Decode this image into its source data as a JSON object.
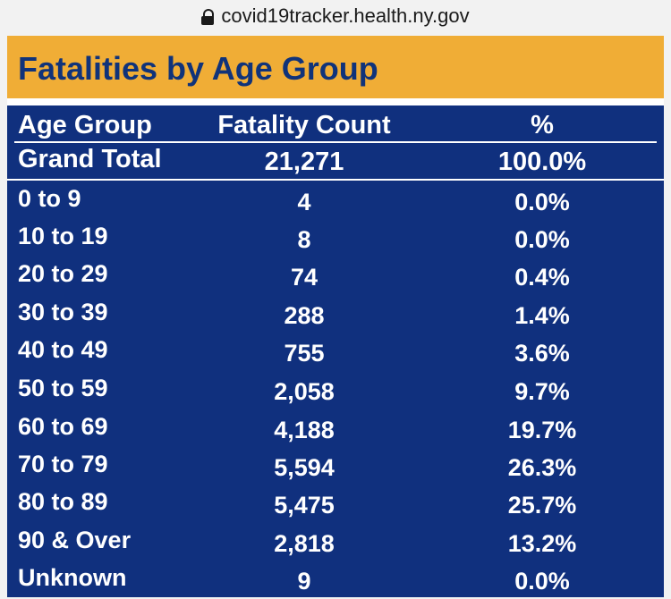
{
  "browser": {
    "url": "covid19tracker.health.ny.gov"
  },
  "panel": {
    "title": "Fatalities by Age Group"
  },
  "table": {
    "headers": {
      "age": "Age Group",
      "count": "Fatality Count",
      "pct": "%"
    },
    "total": {
      "age": "Grand Total",
      "count": "21,271",
      "pct": "100.0%"
    },
    "rows": [
      {
        "age": "0 to 9",
        "count": "4",
        "pct": "0.0%"
      },
      {
        "age": "10 to 19",
        "count": "8",
        "pct": "0.0%"
      },
      {
        "age": "20 to 29",
        "count": "74",
        "pct": "0.4%"
      },
      {
        "age": "30 to 39",
        "count": "288",
        "pct": "1.4%"
      },
      {
        "age": "40 to 49",
        "count": "755",
        "pct": "3.6%"
      },
      {
        "age": "50 to 59",
        "count": "2,058",
        "pct": "9.7%"
      },
      {
        "age": "60 to 69",
        "count": "4,188",
        "pct": "19.7%"
      },
      {
        "age": "70 to 79",
        "count": "5,594",
        "pct": "26.3%"
      },
      {
        "age": "80 to 89",
        "count": "5,475",
        "pct": "25.7%"
      },
      {
        "age": "90 & Over",
        "count": "2,818",
        "pct": "13.2%"
      },
      {
        "age": "Unknown",
        "count": "9",
        "pct": "0.0%"
      }
    ]
  },
  "colors": {
    "header_bar": "#f0ad36",
    "title_text": "#10337a",
    "table_bg": "#10307e"
  }
}
